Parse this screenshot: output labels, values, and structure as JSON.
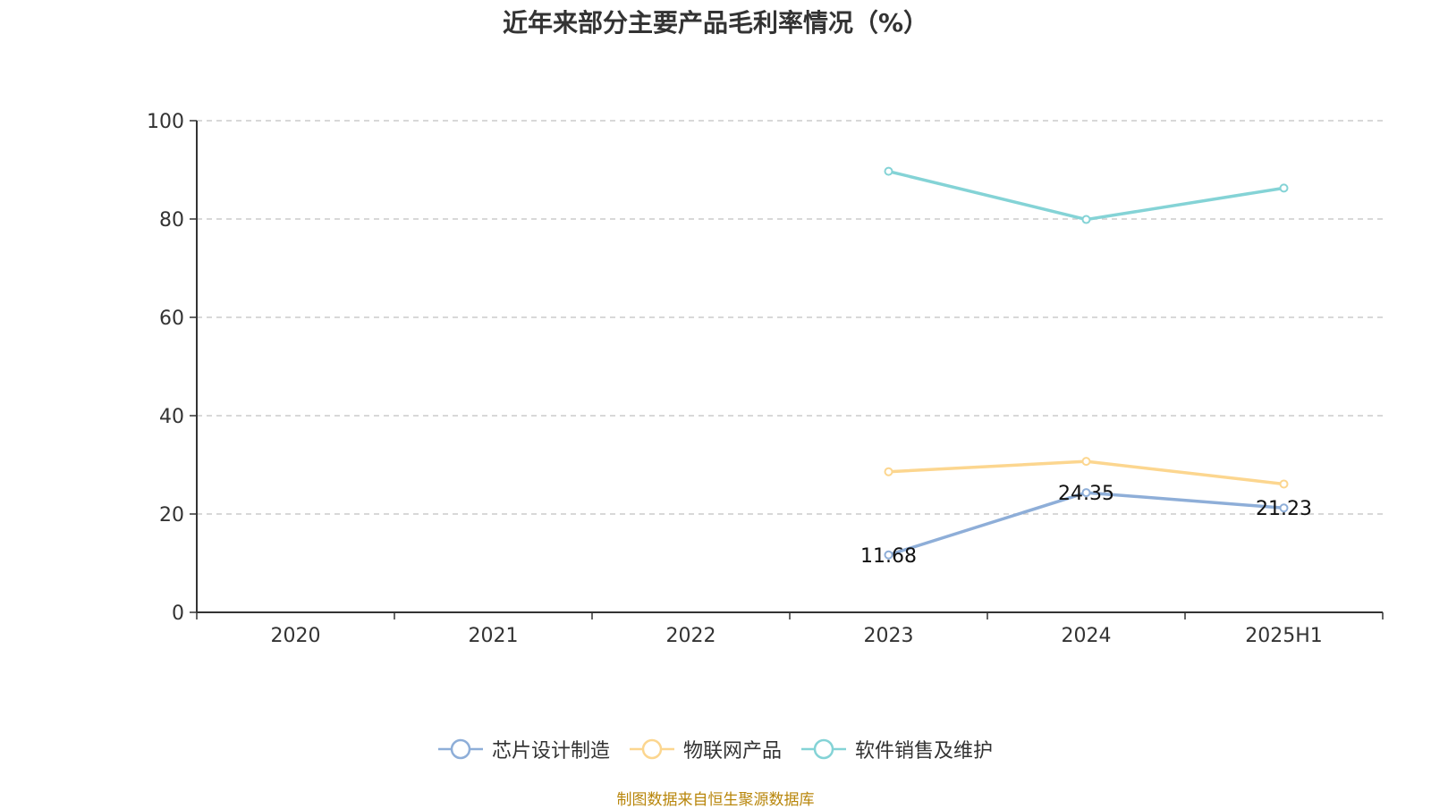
{
  "chart_data": {
    "type": "line",
    "title": "近年来部分主要产品毛利率情况（%）",
    "categories": [
      "2020",
      "2021",
      "2022",
      "2023",
      "2024",
      "2025H1"
    ],
    "ylim": [
      0,
      100
    ],
    "yticks": [
      0,
      20,
      40,
      60,
      80,
      100
    ],
    "grid": true,
    "legend_position": "bottom",
    "series": [
      {
        "name": "芯片设计制造",
        "color": "#8eaed8",
        "values": [
          null,
          null,
          null,
          11.68,
          24.35,
          21.23
        ],
        "labels": [
          null,
          null,
          null,
          "11.68",
          "24.35",
          "21.23"
        ]
      },
      {
        "name": "物联网产品",
        "color": "#fcd68f",
        "values": [
          null,
          null,
          null,
          28.6,
          30.7,
          26.1
        ],
        "labels": [
          null,
          null,
          null,
          null,
          null,
          null
        ]
      },
      {
        "name": "软件销售及维护",
        "color": "#84d3d6",
        "values": [
          null,
          null,
          null,
          89.7,
          79.9,
          86.3
        ],
        "labels": [
          null,
          null,
          null,
          null,
          null,
          null
        ]
      }
    ]
  },
  "source": "制图数据来自恒生聚源数据库"
}
